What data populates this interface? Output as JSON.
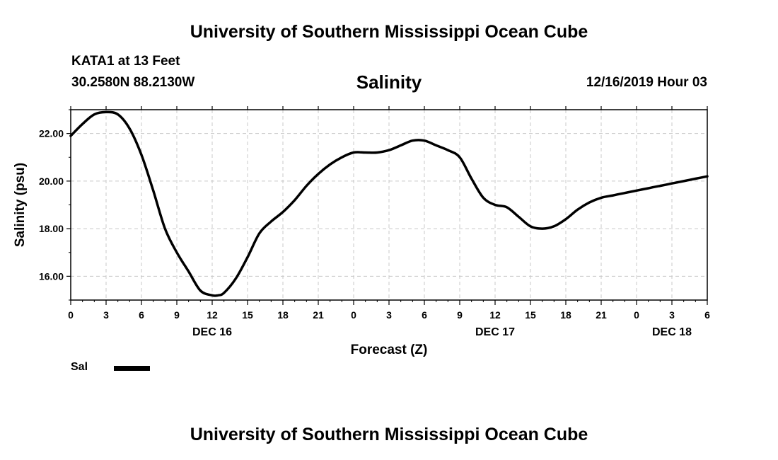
{
  "header": {
    "title": "University of Southern Mississippi Ocean Cube",
    "station": "KATA1 at 13 Feet",
    "coords": "30.2580N 88.2130W",
    "parameter": "Salinity",
    "datetime": "12/16/2019 Hour 03"
  },
  "footer": {
    "title": "University of Southern Mississippi Ocean Cube"
  },
  "legend": {
    "label": "Sal"
  },
  "chart_data": {
    "type": "line",
    "title": "Salinity",
    "xlabel": "Forecast (Z)",
    "ylabel": "Salinity (psu)",
    "x_unit": "hours from Dec 16 00Z",
    "xlim": [
      0,
      54
    ],
    "ylim": [
      15.0,
      23.0
    ],
    "x_tick_values": [
      0,
      3,
      6,
      9,
      12,
      15,
      18,
      21,
      24,
      27,
      30,
      33,
      36,
      39,
      42,
      45,
      48,
      51,
      54
    ],
    "x_tick_labels": [
      "0",
      "3",
      "6",
      "9",
      "12",
      "15",
      "18",
      "21",
      "0",
      "3",
      "6",
      "9",
      "12",
      "15",
      "18",
      "21",
      "0",
      "3",
      "6"
    ],
    "day_labels": [
      {
        "x": 12,
        "label": "DEC 16"
      },
      {
        "x": 36,
        "label": "DEC 17"
      },
      {
        "x": 51,
        "label": "DEC 18"
      }
    ],
    "y_ticks": [
      16,
      18,
      20,
      22
    ],
    "y_tick_labels": [
      "16.00",
      "18.00",
      "20.00",
      "22.00"
    ],
    "grid": true,
    "legend_position": "bottom-left",
    "series": [
      {
        "name": "Sal",
        "color": "#000000",
        "x": [
          0,
          1,
          2,
          3,
          4,
          5,
          6,
          7,
          8,
          9,
          10,
          11,
          12,
          12.5,
          13,
          14,
          15,
          16,
          17,
          18,
          19,
          20,
          21,
          22,
          23,
          24,
          25,
          26,
          27,
          28,
          29,
          30,
          31,
          32,
          33,
          34,
          35,
          36,
          37,
          38,
          39,
          40,
          41,
          42,
          43,
          44,
          45,
          46,
          47,
          48,
          49,
          50,
          51,
          52,
          53,
          54
        ],
        "values": [
          21.9,
          22.4,
          22.8,
          22.9,
          22.8,
          22.2,
          21.1,
          19.6,
          18.0,
          17.0,
          16.2,
          15.4,
          15.2,
          15.2,
          15.3,
          15.9,
          16.8,
          17.8,
          18.3,
          18.7,
          19.2,
          19.8,
          20.3,
          20.7,
          21.0,
          21.2,
          21.2,
          21.2,
          21.3,
          21.5,
          21.7,
          21.7,
          21.5,
          21.3,
          21.0,
          20.1,
          19.3,
          19.0,
          18.9,
          18.5,
          18.1,
          18.0,
          18.1,
          18.4,
          18.8,
          19.1,
          19.3,
          19.4,
          19.5,
          19.6,
          19.7,
          19.8,
          19.9,
          20.0,
          20.1,
          20.2
        ]
      }
    ]
  }
}
